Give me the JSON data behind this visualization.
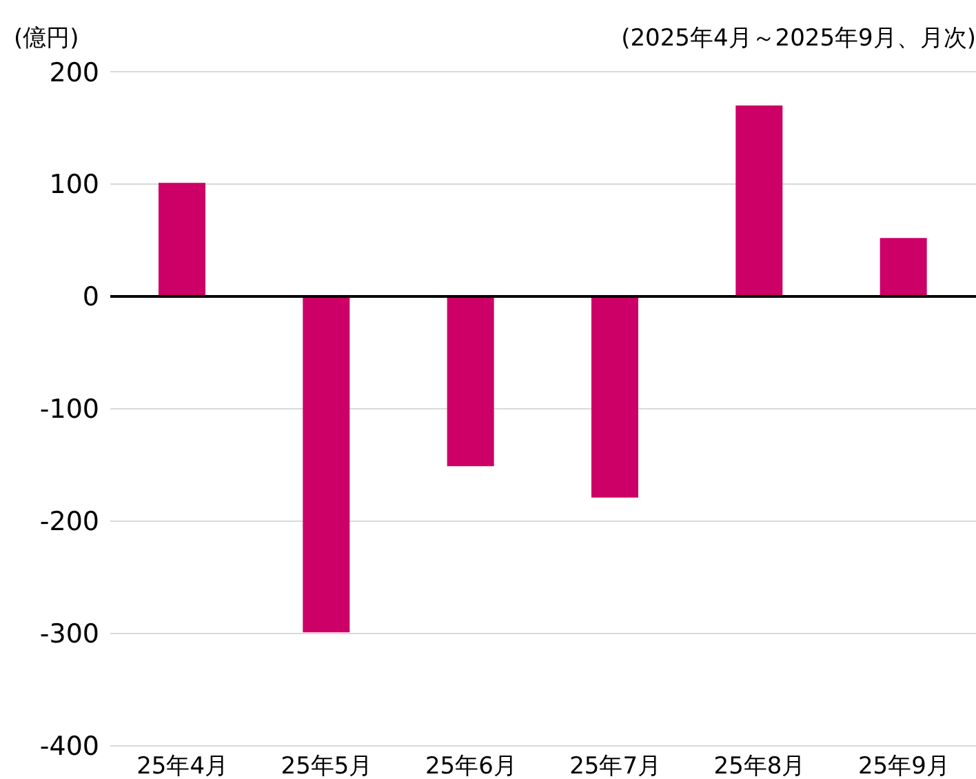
{
  "chart_data": {
    "type": "bar",
    "ylabel": "(億円)",
    "subtitle": "(2025年4月～2025年9月、月次)",
    "categories": [
      "25年4月",
      "25年5月",
      "25年6月",
      "25年7月",
      "25年8月",
      "25年9月"
    ],
    "values": [
      101,
      -299,
      -151,
      -179,
      170,
      52
    ],
    "color": "#cc0066",
    "ylim": [
      -400,
      200
    ],
    "yticks": [
      -400,
      -300,
      -200,
      -100,
      0,
      100,
      200
    ],
    "grid": "y"
  }
}
